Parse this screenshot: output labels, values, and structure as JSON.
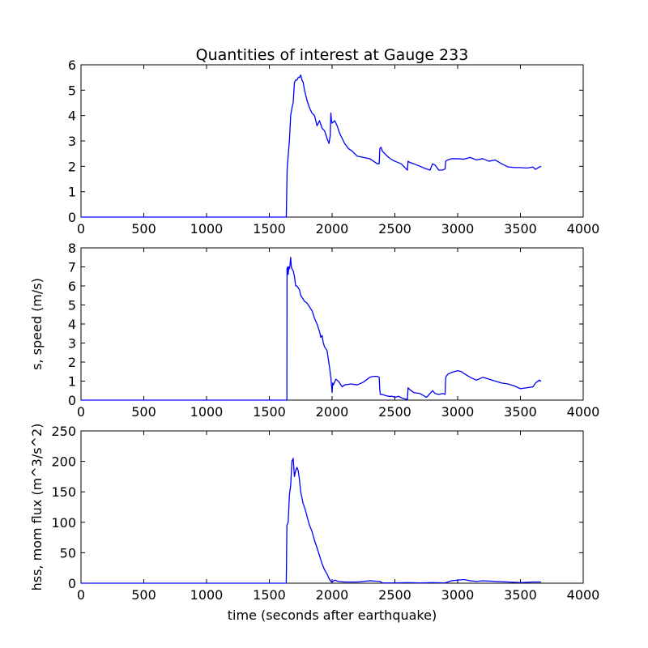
{
  "figure": {
    "title": "Quantities of interest at Gauge 233",
    "xlabel": "time (seconds after earthquake)",
    "line_color": "#0000ff"
  },
  "chart_data": [
    {
      "type": "line",
      "title": "Quantities of interest at Gauge 233",
      "xlabel": "",
      "ylabel": "",
      "xlim": [
        0,
        4000
      ],
      "ylim": [
        0,
        6
      ],
      "xticks": [
        0,
        500,
        1000,
        1500,
        2000,
        2500,
        3000,
        3500,
        4000
      ],
      "yticks": [
        0,
        1,
        2,
        3,
        4,
        5,
        6
      ],
      "grid": false,
      "series": [
        {
          "x": [
            0,
            1635,
            1638,
            1642,
            1650,
            1660,
            1670,
            1680,
            1690,
            1700,
            1710,
            1720,
            1730,
            1740,
            1750,
            1760,
            1770,
            1780,
            1790,
            1800,
            1820,
            1840,
            1860,
            1880,
            1900,
            1920,
            1940,
            1960,
            1975,
            1985,
            1990,
            1995,
            2000,
            2020,
            2040,
            2060,
            2080,
            2100,
            2130,
            2160,
            2200,
            2250,
            2300,
            2330,
            2360,
            2375,
            2380,
            2390,
            2400,
            2420,
            2450,
            2480,
            2500,
            2550,
            2580,
            2600,
            2605,
            2620,
            2650,
            2700,
            2750,
            2780,
            2800,
            2820,
            2850,
            2880,
            2900,
            2905,
            2920,
            2950,
            3000,
            3050,
            3100,
            3150,
            3200,
            3250,
            3300,
            3350,
            3400,
            3450,
            3500,
            3550,
            3600,
            3620,
            3650,
            3665
          ],
          "y": [
            0,
            0,
            0.8,
            1.9,
            2.4,
            3.0,
            4.0,
            4.3,
            4.5,
            5.3,
            5.4,
            5.4,
            5.5,
            5.5,
            5.6,
            5.4,
            5.3,
            5.0,
            4.8,
            4.6,
            4.3,
            4.1,
            4.0,
            3.6,
            3.8,
            3.5,
            3.4,
            3.1,
            2.9,
            3.2,
            4.1,
            3.8,
            3.7,
            3.8,
            3.6,
            3.3,
            3.1,
            2.9,
            2.7,
            2.6,
            2.4,
            2.35,
            2.3,
            2.2,
            2.1,
            2.1,
            2.7,
            2.75,
            2.6,
            2.5,
            2.35,
            2.25,
            2.2,
            2.1,
            1.95,
            1.85,
            2.2,
            2.15,
            2.1,
            2.0,
            1.9,
            1.85,
            2.1,
            2.05,
            1.85,
            1.85,
            1.9,
            2.2,
            2.25,
            2.3,
            2.3,
            2.28,
            2.35,
            2.25,
            2.3,
            2.2,
            2.25,
            2.1,
            1.98,
            1.95,
            1.95,
            1.93,
            1.97,
            1.88,
            1.97,
            2.0
          ]
        }
      ]
    },
    {
      "type": "line",
      "title": "",
      "xlabel": "",
      "ylabel": "s, speed (m/s)",
      "xlim": [
        0,
        4000
      ],
      "ylim": [
        0,
        8
      ],
      "xticks": [
        0,
        500,
        1000,
        1500,
        2000,
        2500,
        3000,
        3500,
        4000
      ],
      "yticks": [
        0,
        1,
        2,
        3,
        4,
        5,
        6,
        7,
        8
      ],
      "grid": false,
      "series": [
        {
          "x": [
            0,
            1640,
            1641,
            1645,
            1650,
            1655,
            1660,
            1665,
            1670,
            1675,
            1680,
            1690,
            1700,
            1710,
            1720,
            1730,
            1740,
            1750,
            1760,
            1780,
            1800,
            1820,
            1840,
            1860,
            1880,
            1900,
            1910,
            1920,
            1930,
            1940,
            1960,
            1980,
            1990,
            2000,
            2005,
            2010,
            2030,
            2050,
            2060,
            2080,
            2100,
            2150,
            2200,
            2250,
            2300,
            2330,
            2360,
            2375,
            2380,
            2385,
            2400,
            2420,
            2450,
            2480,
            2500,
            2530,
            2560,
            2590,
            2600,
            2605,
            2620,
            2650,
            2700,
            2750,
            2760,
            2780,
            2800,
            2820,
            2850,
            2880,
            2900,
            2905,
            2920,
            2950,
            3000,
            3030,
            3050,
            3100,
            3150,
            3200,
            3250,
            3300,
            3350,
            3400,
            3450,
            3500,
            3550,
            3600,
            3620,
            3650,
            3665
          ],
          "y": [
            0,
            0,
            6.9,
            7.0,
            6.6,
            7.0,
            6.9,
            7.1,
            7.5,
            7.0,
            6.9,
            6.8,
            6.5,
            6.0,
            6.0,
            5.9,
            5.8,
            5.5,
            5.4,
            5.2,
            5.1,
            4.9,
            4.7,
            4.3,
            4.0,
            3.6,
            3.3,
            3.4,
            3.0,
            2.8,
            2.6,
            1.7,
            1.2,
            0.4,
            0.9,
            0.8,
            1.1,
            1.0,
            0.9,
            0.7,
            0.8,
            0.85,
            0.8,
            0.95,
            1.2,
            1.25,
            1.25,
            1.2,
            0.5,
            0.3,
            0.3,
            0.25,
            0.2,
            0.2,
            0.15,
            0.2,
            0.1,
            0.05,
            0.05,
            0.65,
            0.55,
            0.4,
            0.35,
            0.15,
            0.2,
            0.35,
            0.5,
            0.35,
            0.3,
            0.35,
            0.3,
            1.2,
            1.35,
            1.45,
            1.55,
            1.5,
            1.4,
            1.2,
            1.05,
            1.2,
            1.1,
            1.0,
            0.9,
            0.85,
            0.75,
            0.6,
            0.65,
            0.7,
            0.9,
            1.05,
            1.0
          ]
        }
      ]
    },
    {
      "type": "line",
      "title": "",
      "xlabel": "time (seconds after earthquake)",
      "ylabel": "hss, mom flux (m^3/s^2)",
      "xlim": [
        0,
        4000
      ],
      "ylim": [
        0,
        250
      ],
      "xticks": [
        0,
        500,
        1000,
        1500,
        2000,
        2500,
        3000,
        3500,
        4000
      ],
      "yticks": [
        0,
        50,
        100,
        150,
        200,
        250
      ],
      "grid": false,
      "series": [
        {
          "x": [
            0,
            1635,
            1640,
            1650,
            1660,
            1670,
            1680,
            1690,
            1700,
            1710,
            1720,
            1730,
            1740,
            1750,
            1760,
            1770,
            1780,
            1790,
            1800,
            1820,
            1840,
            1860,
            1880,
            1900,
            1920,
            1940,
            1960,
            1975,
            1990,
            2000,
            2020,
            2050,
            2100,
            2200,
            2300,
            2380,
            2400,
            2500,
            2600,
            2700,
            2800,
            2900,
            2950,
            3000,
            3050,
            3100,
            3150,
            3200,
            3300,
            3400,
            3500,
            3600,
            3665
          ],
          "y": [
            0,
            0,
            95,
            100,
            145,
            160,
            200,
            205,
            175,
            185,
            190,
            185,
            170,
            150,
            140,
            130,
            125,
            118,
            110,
            95,
            85,
            70,
            58,
            45,
            32,
            22,
            15,
            8,
            3,
            2,
            5,
            3,
            2,
            2,
            4,
            3,
            0.5,
            0.5,
            1,
            0.5,
            1,
            0.5,
            4,
            5,
            6,
            4,
            3,
            4,
            3,
            2,
            1,
            2,
            2
          ]
        }
      ]
    }
  ]
}
